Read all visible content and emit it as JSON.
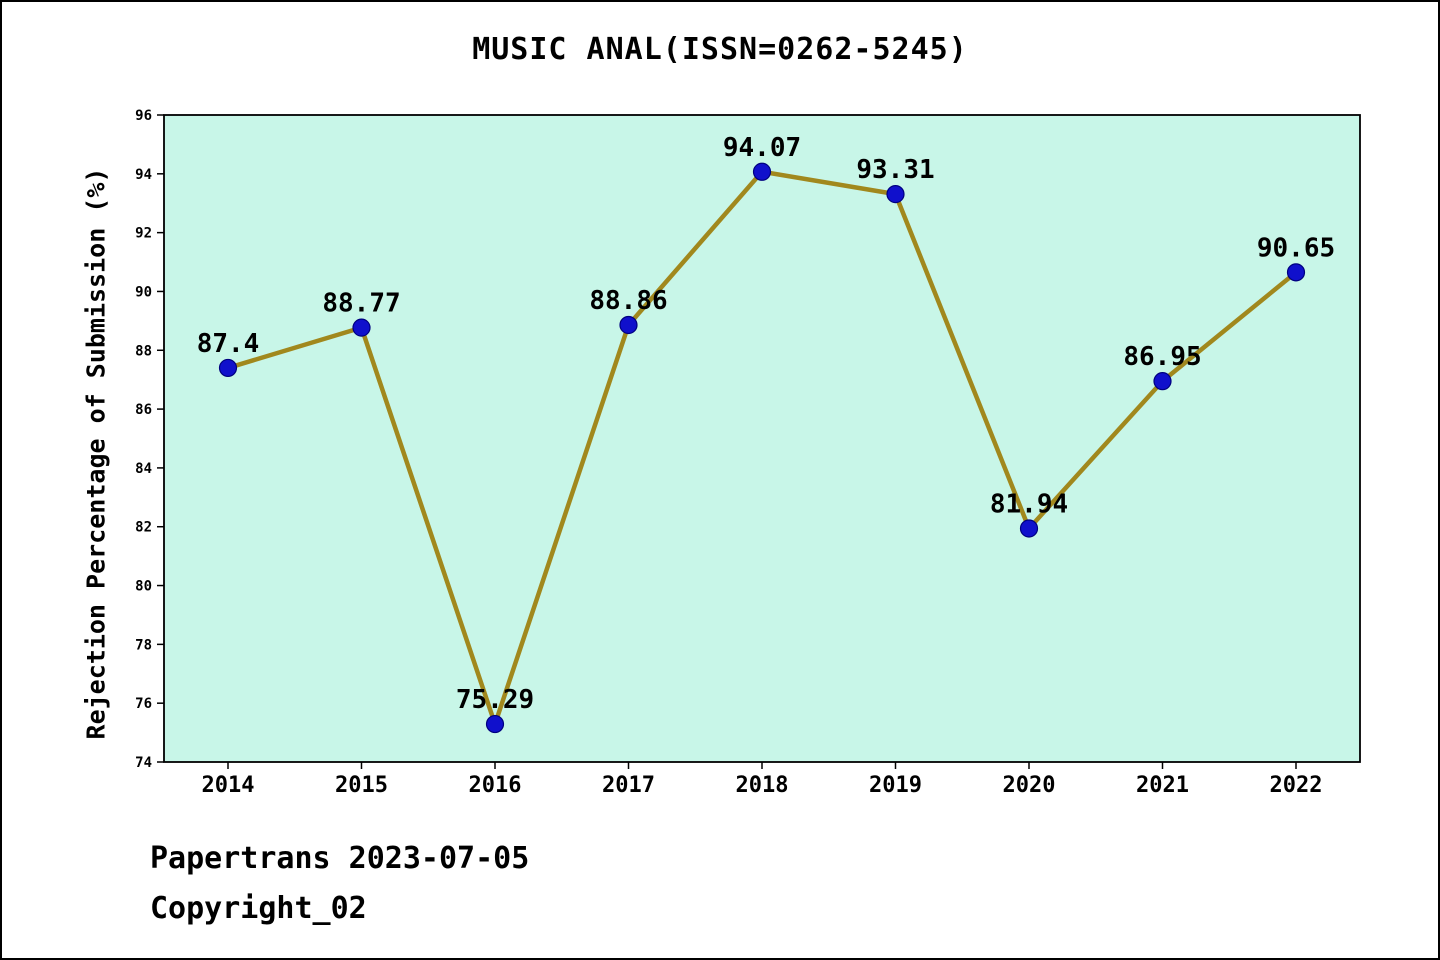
{
  "title": "MUSIC ANAL(ISSN=0262-5245)",
  "footer": {
    "line1": "Papertrans 2023-07-05",
    "line2": "Copyright_02"
  },
  "chart_data": {
    "type": "line",
    "title": "MUSIC ANAL(ISSN=0262-5245)",
    "x": [
      "2014",
      "2015",
      "2016",
      "2017",
      "2018",
      "2019",
      "2020",
      "2021",
      "2022"
    ],
    "values": [
      87.4,
      88.77,
      75.29,
      88.86,
      94.07,
      93.31,
      81.94,
      86.95,
      90.65
    ],
    "xlabel": "",
    "ylabel": "Rejection Percentage of Submission (%)",
    "ylim": [
      74,
      96
    ],
    "ytick_step": 2,
    "grid": false,
    "legend": "none",
    "colors": {
      "line": "#a1881d",
      "marker_fill": "#1010cc",
      "marker_edge": "#000080",
      "plot_bg": "#c8f6e8",
      "axis": "#000000",
      "text": "#000000"
    }
  }
}
